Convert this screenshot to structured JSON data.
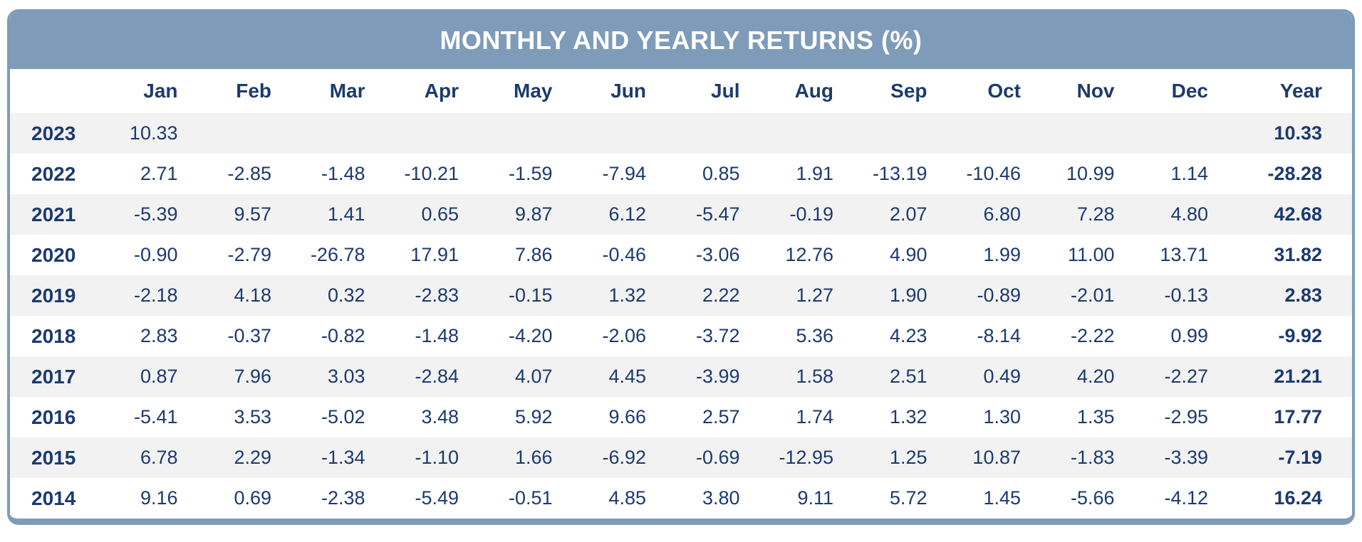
{
  "title": "MONTHLY AND YEARLY RETURNS (%)",
  "colors": {
    "header_bg": "#7E9CB9",
    "text_navy": "#1C3A6E",
    "row_alt": "#F2F2F2",
    "title_text": "#FFFFFF"
  },
  "chart_data": {
    "type": "table",
    "title": "MONTHLY AND YEARLY RETURNS (%)",
    "columns": [
      "",
      "Jan",
      "Feb",
      "Mar",
      "Apr",
      "May",
      "Jun",
      "Jul",
      "Aug",
      "Sep",
      "Oct",
      "Nov",
      "Dec",
      "Year"
    ],
    "rows": [
      {
        "year": "2023",
        "monthly": [
          "10.33",
          "",
          "",
          "",
          "",
          "",
          "",
          "",
          "",
          "",
          "",
          ""
        ],
        "yearly": "10.33"
      },
      {
        "year": "2022",
        "monthly": [
          "2.71",
          "-2.85",
          "-1.48",
          "-10.21",
          "-1.59",
          "-7.94",
          "0.85",
          "1.91",
          "-13.19",
          "-10.46",
          "10.99",
          "1.14"
        ],
        "yearly": "-28.28"
      },
      {
        "year": "2021",
        "monthly": [
          "-5.39",
          "9.57",
          "1.41",
          "0.65",
          "9.87",
          "6.12",
          "-5.47",
          "-0.19",
          "2.07",
          "6.80",
          "7.28",
          "4.80"
        ],
        "yearly": "42.68"
      },
      {
        "year": "2020",
        "monthly": [
          "-0.90",
          "-2.79",
          "-26.78",
          "17.91",
          "7.86",
          "-0.46",
          "-3.06",
          "12.76",
          "4.90",
          "1.99",
          "11.00",
          "13.71"
        ],
        "yearly": "31.82"
      },
      {
        "year": "2019",
        "monthly": [
          "-2.18",
          "4.18",
          "0.32",
          "-2.83",
          "-0.15",
          "1.32",
          "2.22",
          "1.27",
          "1.90",
          "-0.89",
          "-2.01",
          "-0.13"
        ],
        "yearly": "2.83"
      },
      {
        "year": "2018",
        "monthly": [
          "2.83",
          "-0.37",
          "-0.82",
          "-1.48",
          "-4.20",
          "-2.06",
          "-3.72",
          "5.36",
          "4.23",
          "-8.14",
          "-2.22",
          "0.99"
        ],
        "yearly": "-9.92"
      },
      {
        "year": "2017",
        "monthly": [
          "0.87",
          "7.96",
          "3.03",
          "-2.84",
          "4.07",
          "4.45",
          "-3.99",
          "1.58",
          "2.51",
          "0.49",
          "4.20",
          "-2.27"
        ],
        "yearly": "21.21"
      },
      {
        "year": "2016",
        "monthly": [
          "-5.41",
          "3.53",
          "-5.02",
          "3.48",
          "5.92",
          "9.66",
          "2.57",
          "1.74",
          "1.32",
          "1.30",
          "1.35",
          "-2.95"
        ],
        "yearly": "17.77"
      },
      {
        "year": "2015",
        "monthly": [
          "6.78",
          "2.29",
          "-1.34",
          "-1.10",
          "1.66",
          "-6.92",
          "-0.69",
          "-12.95",
          "1.25",
          "10.87",
          "-1.83",
          "-3.39"
        ],
        "yearly": "-7.19"
      },
      {
        "year": "2014",
        "monthly": [
          "9.16",
          "0.69",
          "-2.38",
          "-5.49",
          "-0.51",
          "4.85",
          "3.80",
          "9.11",
          "5.72",
          "1.45",
          "-5.66",
          "-4.12"
        ],
        "yearly": "16.24"
      }
    ]
  }
}
